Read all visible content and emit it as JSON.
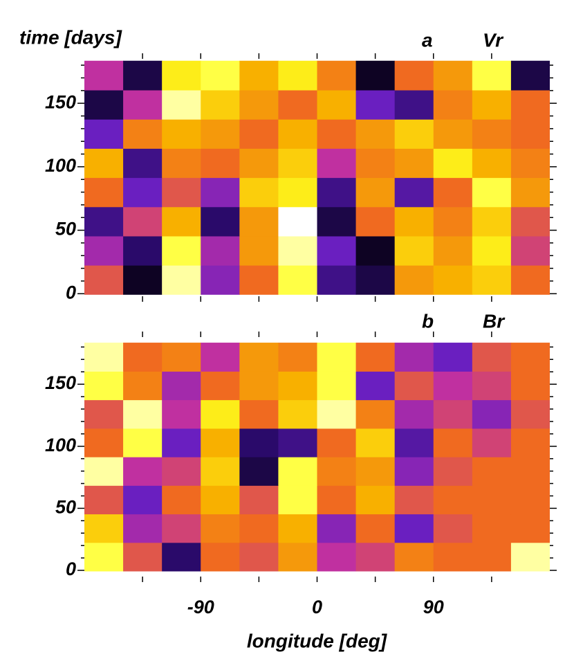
{
  "chart_data": [
    {
      "type": "heatmap",
      "label_left": "time [days]",
      "label_mid": "a",
      "label_right": "Vr",
      "xlim": [
        -180,
        180
      ],
      "ylim": [
        -2,
        185
      ],
      "yticks": [
        0,
        50,
        100,
        150
      ],
      "yminorticks": [
        10,
        20,
        30,
        40,
        60,
        70,
        80,
        90,
        110,
        120,
        130,
        140,
        160,
        170,
        180
      ],
      "xminorticks": [
        -135,
        -90,
        -45,
        0,
        45,
        90,
        135
      ],
      "x": [
        -165,
        -135,
        -105,
        -75,
        -45,
        -15,
        15,
        45,
        75,
        105,
        135,
        165
      ],
      "y": [
        11,
        34,
        57,
        80,
        103,
        126,
        149,
        172
      ],
      "z": [
        [
          0.55,
          0.05,
          0.95,
          0.35,
          0.6,
          0.9,
          0.2,
          0.1,
          0.7,
          0.75,
          0.8,
          0.6
        ],
        [
          0.4,
          0.15,
          0.9,
          0.4,
          0.7,
          0.95,
          0.3,
          0.05,
          0.8,
          0.7,
          0.85,
          0.5
        ],
        [
          0.2,
          0.5,
          0.75,
          0.15,
          0.7,
          1.0,
          0.1,
          0.6,
          0.75,
          0.65,
          0.8,
          0.55
        ],
        [
          0.6,
          0.3,
          0.55,
          0.35,
          0.8,
          0.85,
          0.2,
          0.7,
          0.25,
          0.6,
          0.9,
          0.7
        ],
        [
          0.75,
          0.2,
          0.65,
          0.6,
          0.7,
          0.8,
          0.45,
          0.65,
          0.7,
          0.85,
          0.75,
          0.65
        ],
        [
          0.3,
          0.65,
          0.75,
          0.7,
          0.6,
          0.75,
          0.6,
          0.7,
          0.8,
          0.7,
          0.65,
          0.6
        ],
        [
          0.1,
          0.45,
          0.95,
          0.8,
          0.7,
          0.6,
          0.75,
          0.3,
          0.2,
          0.65,
          0.75,
          0.6
        ],
        [
          0.45,
          0.1,
          0.85,
          0.9,
          0.75,
          0.85,
          0.65,
          0.05,
          0.6,
          0.7,
          0.9,
          0.1
        ]
      ]
    },
    {
      "type": "heatmap",
      "label_mid": "b",
      "label_right": "Br",
      "xlim": [
        -180,
        180
      ],
      "ylim": [
        -5,
        188
      ],
      "yticks": [
        0,
        50,
        100,
        150
      ],
      "yminorticks": [
        10,
        20,
        30,
        40,
        60,
        70,
        80,
        90,
        110,
        120,
        130,
        140,
        160,
        170,
        180
      ],
      "xminorticks": [
        -135,
        -90,
        -45,
        0,
        45,
        90,
        135
      ],
      "xticks": [
        -90,
        0,
        90
      ],
      "xlabel": "longitude [deg]",
      "x": [
        -165,
        -135,
        -105,
        -75,
        -45,
        -15,
        15,
        45,
        75,
        105,
        135,
        165
      ],
      "y": [
        11,
        34,
        57,
        80,
        103,
        126,
        149,
        172
      ],
      "z": [
        [
          0.9,
          0.55,
          0.15,
          0.6,
          0.55,
          0.7,
          0.45,
          0.5,
          0.65,
          0.6,
          0.6,
          0.95
        ],
        [
          0.8,
          0.4,
          0.5,
          0.65,
          0.6,
          0.75,
          0.35,
          0.6,
          0.3,
          0.55,
          0.6,
          0.6
        ],
        [
          0.55,
          0.3,
          0.6,
          0.75,
          0.55,
          0.9,
          0.6,
          0.75,
          0.55,
          0.6,
          0.6,
          0.6
        ],
        [
          0.95,
          0.45,
          0.5,
          0.8,
          0.1,
          0.9,
          0.65,
          0.7,
          0.35,
          0.55,
          0.6,
          0.6
        ],
        [
          0.6,
          0.9,
          0.3,
          0.75,
          0.15,
          0.2,
          0.6,
          0.8,
          0.25,
          0.6,
          0.5,
          0.6
        ],
        [
          0.55,
          0.95,
          0.45,
          0.85,
          0.6,
          0.8,
          0.95,
          0.65,
          0.4,
          0.5,
          0.35,
          0.55
        ],
        [
          0.9,
          0.65,
          0.4,
          0.6,
          0.7,
          0.75,
          0.9,
          0.3,
          0.55,
          0.45,
          0.5,
          0.6
        ],
        [
          0.95,
          0.6,
          0.65,
          0.45,
          0.7,
          0.65,
          0.9,
          0.6,
          0.4,
          0.3,
          0.55,
          0.6
        ]
      ]
    }
  ]
}
